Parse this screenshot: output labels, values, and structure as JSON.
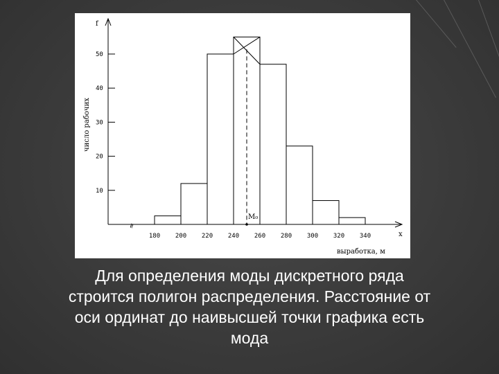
{
  "chart_data": {
    "type": "bar",
    "ylabel": "число рабочих",
    "y_axis_letter": "f",
    "xlabel": "выработка, м",
    "x_axis_letter": "x",
    "axis_break_symbol": "≈",
    "x_ticks": [
      "180",
      "200",
      "220",
      "240",
      "260",
      "280",
      "300",
      "320",
      "340"
    ],
    "y_ticks": [
      "10",
      "20",
      "30",
      "40",
      "50"
    ],
    "ylim": [
      0,
      60
    ],
    "bins": [
      {
        "from": 180,
        "to": 200,
        "value": 2.5
      },
      {
        "from": 200,
        "to": 220,
        "value": 12
      },
      {
        "from": 220,
        "to": 240,
        "value": 50
      },
      {
        "from": 240,
        "to": 260,
        "value": 55
      },
      {
        "from": 260,
        "to": 280,
        "value": 47
      },
      {
        "from": 280,
        "to": 300,
        "value": 23
      },
      {
        "from": 300,
        "to": 320,
        "value": 7
      },
      {
        "from": 320,
        "to": 340,
        "value": 2
      }
    ],
    "mode_label": "M₀",
    "mode_value": 250,
    "grid": false,
    "legend": "none"
  },
  "caption": {
    "lines": [
      "Для определения моды дискретного ряда",
      "строится полигон распределения. Расстояние  от",
      "оси ординат до  наивысшей точки графика есть",
      "мода"
    ]
  },
  "colors": {
    "background": "#3b3b3b",
    "panel": "#ffffff",
    "ink": "#000000",
    "caption_text": "#ffffff"
  }
}
